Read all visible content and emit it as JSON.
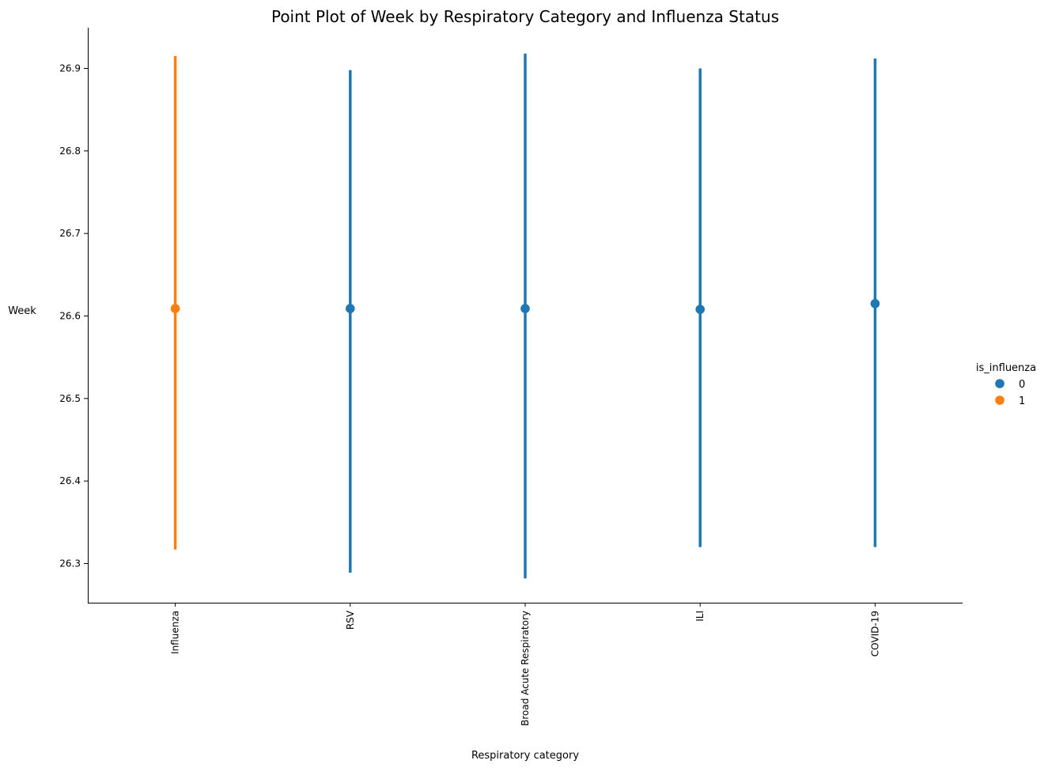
{
  "chart_data": {
    "type": "scatter",
    "title": "Point Plot of Week by Respiratory Category and Influenza Status",
    "xlabel": "Respiratory category",
    "ylabel": "Week",
    "categories": [
      "Influenza",
      "RSV",
      "Broad Acute Respiratory",
      "ILI",
      "COVID-19"
    ],
    "ylim": [
      26.25,
      26.95
    ],
    "yticks": [
      "26.3",
      "26.4",
      "26.5",
      "26.6",
      "26.7",
      "26.8",
      "26.9"
    ],
    "grid": false,
    "legend": {
      "title": "is_influenza",
      "placement": "right",
      "entries": [
        {
          "label": "0",
          "color": "#1f77b4"
        },
        {
          "label": "1",
          "color": "#ff7f0e"
        }
      ]
    },
    "points": [
      {
        "category": "Influenza",
        "is_influenza": "1",
        "mean": 26.609,
        "ci_low": 26.317,
        "ci_high": 26.915
      },
      {
        "category": "RSV",
        "is_influenza": "0",
        "mean": 26.609,
        "ci_low": 26.289,
        "ci_high": 26.898
      },
      {
        "category": "Broad Acute Respiratory",
        "is_influenza": "0",
        "mean": 26.609,
        "ci_low": 26.282,
        "ci_high": 26.918
      },
      {
        "category": "ILI",
        "is_influenza": "0",
        "mean": 26.608,
        "ci_low": 26.32,
        "ci_high": 26.9
      },
      {
        "category": "COVID-19",
        "is_influenza": "0",
        "mean": 26.615,
        "ci_low": 26.32,
        "ci_high": 26.912
      }
    ]
  }
}
